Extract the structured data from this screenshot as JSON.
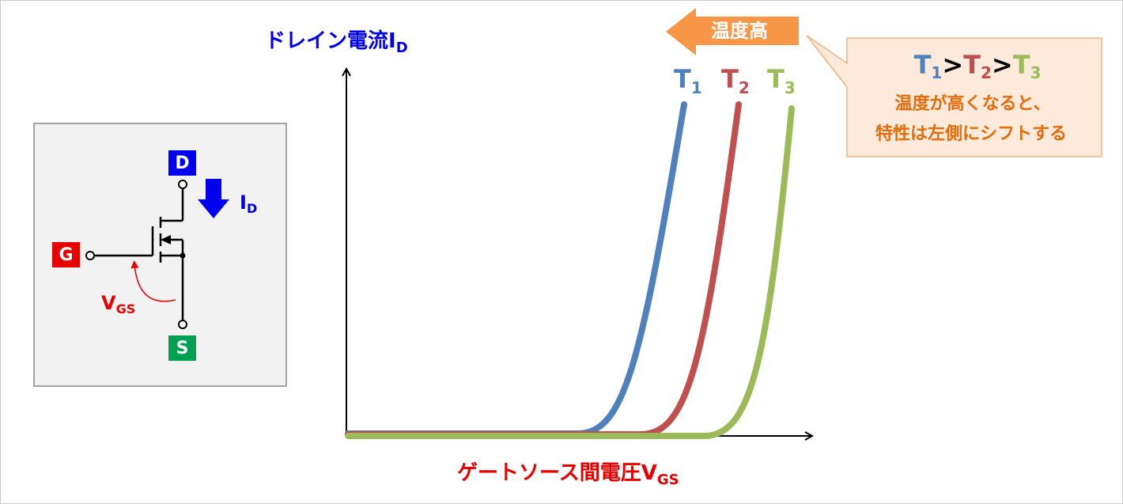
{
  "y_axis_label": {
    "text": "ドレイン電流I",
    "sub": "D"
  },
  "x_axis_label": {
    "text": "ゲートソース間電圧V",
    "sub": "GS"
  },
  "curves": [
    {
      "label": "T",
      "sub": "1"
    },
    {
      "label": "T",
      "sub": "2"
    },
    {
      "label": "T",
      "sub": "3"
    }
  ],
  "shift_arrow": "温度高",
  "callout": {
    "relation": [
      "T",
      "1",
      ">",
      "T",
      "2",
      ">",
      "T",
      "3"
    ],
    "lines": [
      "温度が高くなると、",
      "特性は左側にシフトする"
    ]
  },
  "circuit": {
    "drain": "D",
    "gate": "G",
    "source": "S",
    "current": {
      "text": "I",
      "sub": "D"
    },
    "voltage": {
      "text": "V",
      "sub": "GS"
    }
  }
}
